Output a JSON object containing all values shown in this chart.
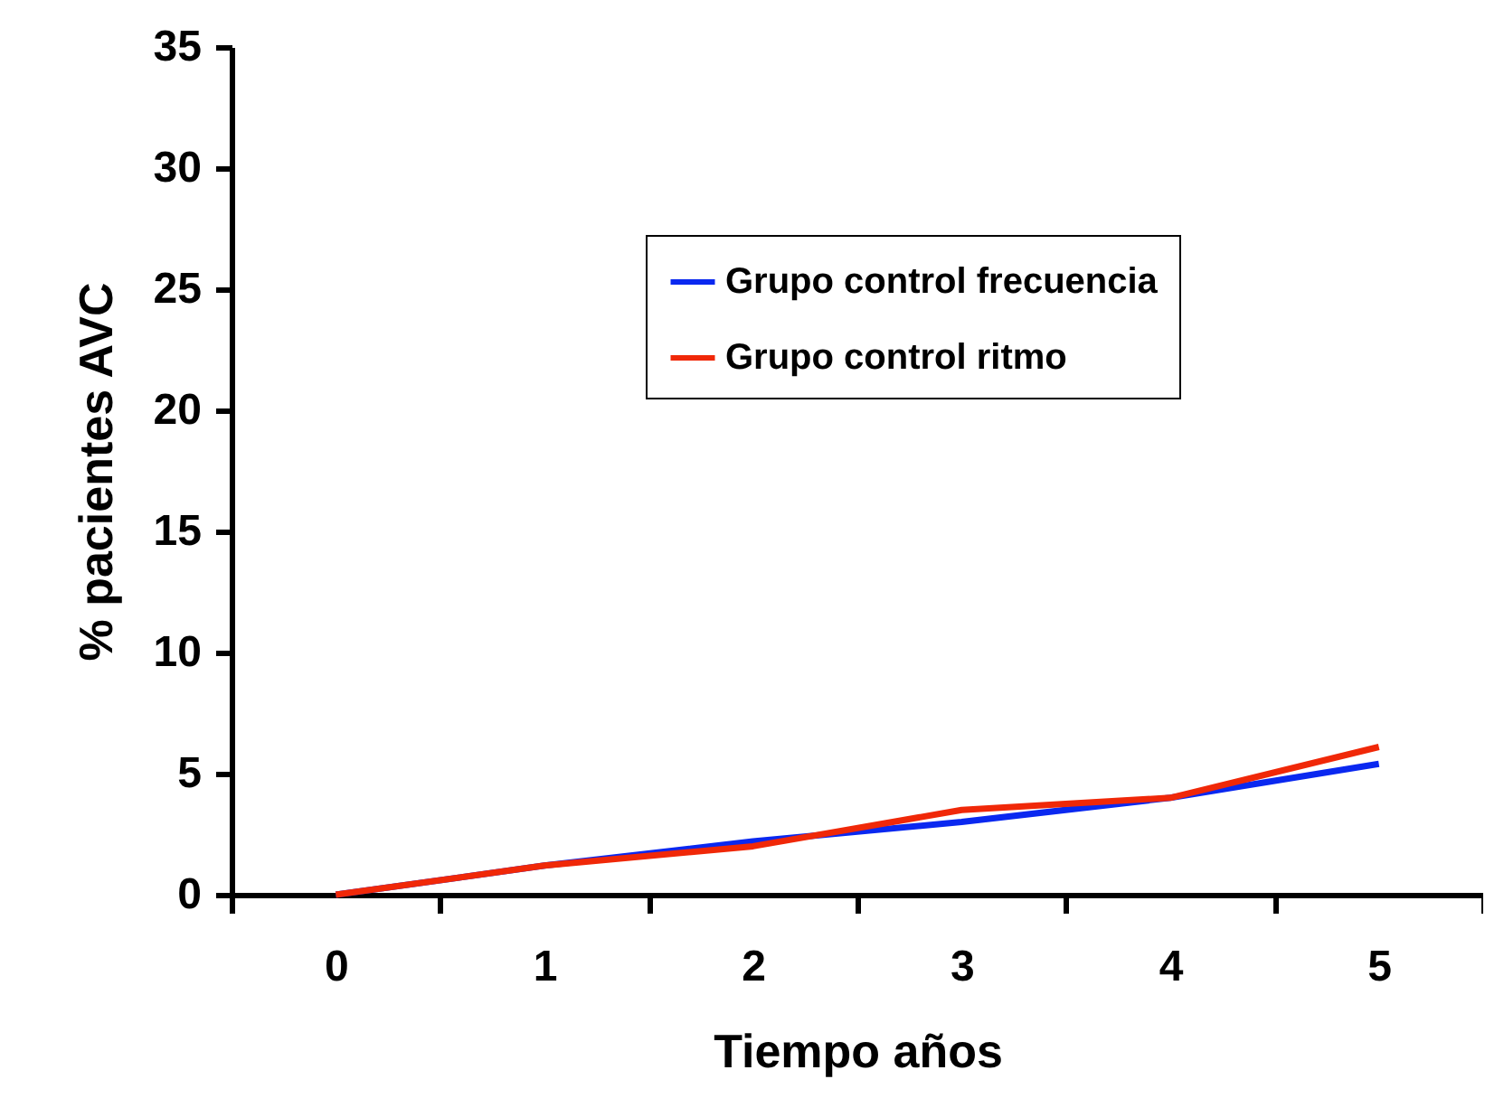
{
  "chart_data": {
    "type": "line",
    "xlabel": "Tiempo años",
    "ylabel": "% pacientes AVC",
    "categories": [
      "0",
      "1",
      "2",
      "3",
      "4",
      "5"
    ],
    "series": [
      {
        "name": "Grupo control frecuencia",
        "color": "#0a28f0",
        "values": [
          0,
          1.2,
          2.2,
          3.0,
          4.0,
          5.4
        ]
      },
      {
        "name": "Grupo control ritmo",
        "color": "#f02808",
        "values": [
          0,
          1.2,
          2.0,
          3.5,
          4.0,
          6.1
        ]
      }
    ],
    "ylim": [
      0,
      35
    ],
    "yticks": [
      0,
      5,
      10,
      15,
      20,
      25,
      30,
      35
    ],
    "grid": false,
    "legend": "top right",
    "marker": "none",
    "line_style": "solid"
  }
}
